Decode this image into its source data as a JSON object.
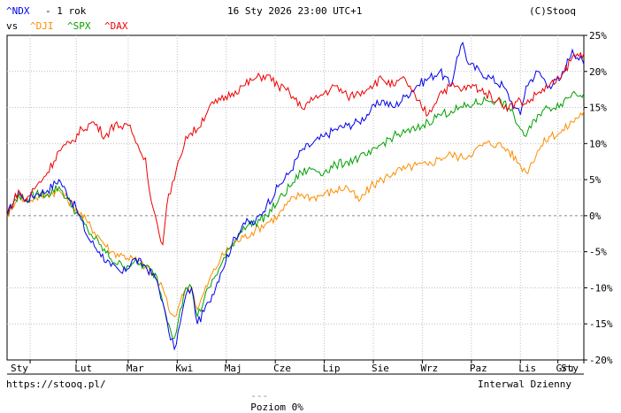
{
  "header": {
    "main_symbol": "^NDX",
    "period": "- 1 rok",
    "datetime": "16 Sty 2026 23:00 UTC+1",
    "copyright": "(C)Stooq",
    "vs_label": "vs"
  },
  "footer": {
    "url": "https://stooq.pl/",
    "zero_level_label": "Poziom 0%",
    "interval_label": "Interwal Dzienny"
  },
  "colors": {
    "NDX": "#0000ee",
    "DJI": "#ff8c00",
    "SPX": "#00a000",
    "DAX": "#ee0000",
    "grid": "#bfbfbf",
    "zero_line": "#888888",
    "frame": "#000000"
  },
  "chart_data": {
    "type": "line",
    "title": "^NDX - 1 rok",
    "y_unit": "%",
    "ylim": [
      -20,
      25
    ],
    "yticks": [
      25,
      20,
      15,
      10,
      5,
      0,
      -5,
      -10,
      -15,
      -20
    ],
    "ytick_labels": [
      "25%",
      "20%",
      "15%",
      "10%",
      "5%",
      "0%",
      "-5%",
      "-10%",
      "-15%",
      "-20%"
    ],
    "xlim": [
      0,
      100
    ],
    "x_ticks": [
      {
        "label": "Sty",
        "x": 4
      },
      {
        "label": "Lut",
        "x": 12
      },
      {
        "label": "Mar",
        "x": 21
      },
      {
        "label": "Kwi",
        "x": 29.5
      },
      {
        "label": "Maj",
        "x": 38
      },
      {
        "label": "Cze",
        "x": 46.5
      },
      {
        "label": "Lip",
        "x": 55
      },
      {
        "label": "Sie",
        "x": 63.5
      },
      {
        "label": "Wrz",
        "x": 72
      },
      {
        "label": "Paz",
        "x": 80.5
      },
      {
        "label": "Lis",
        "x": 89
      },
      {
        "label": "Gru",
        "x": 95.5
      },
      {
        "label": "Sty",
        "x": 100
      }
    ],
    "x_unit_note": "percent of the one-year period",
    "grid": true,
    "zero_line": true,
    "legend": "top-left",
    "series": [
      {
        "name": "^NDX",
        "color": "#0000ee",
        "x": [
          0,
          2,
          3,
          5,
          7,
          9,
          12,
          14,
          16,
          18,
          20,
          22,
          24,
          26,
          27,
          28,
          29,
          30,
          31,
          32,
          33,
          35,
          37,
          39,
          41,
          43,
          45,
          47,
          49,
          51,
          53,
          55,
          57,
          59,
          61,
          63,
          65,
          67,
          69,
          71,
          73,
          75,
          77,
          78,
          79,
          80,
          82,
          84,
          86,
          88,
          89,
          90,
          92,
          94,
          96,
          98,
          100
        ],
        "y": [
          0,
          3.5,
          2,
          3,
          3.5,
          5,
          1,
          -3,
          -5,
          -7,
          -8,
          -6,
          -7,
          -9,
          -12,
          -16,
          -18.5,
          -15,
          -11,
          -10,
          -15,
          -12,
          -8,
          -4,
          -1,
          -1,
          1.5,
          4,
          6,
          9,
          10,
          11,
          12,
          12.5,
          13,
          14.5,
          16,
          15,
          16.5,
          18,
          19,
          20,
          18,
          22,
          24,
          21,
          20,
          19,
          18,
          15,
          14,
          18,
          20,
          18,
          19,
          23,
          21
        ]
      },
      {
        "name": "^DJI",
        "color": "#ff8c00",
        "x": [
          0,
          2,
          3,
          5,
          7,
          9,
          12,
          14,
          16,
          18,
          20,
          22,
          24,
          26,
          27,
          28,
          29,
          30,
          31,
          32,
          33,
          35,
          37,
          39,
          41,
          43,
          45,
          47,
          49,
          51,
          53,
          55,
          57,
          59,
          61,
          63,
          65,
          67,
          69,
          71,
          73,
          75,
          77,
          79,
          81,
          83,
          85,
          87,
          89,
          90,
          92,
          94,
          96,
          98,
          100
        ],
        "y": [
          0,
          3,
          2,
          2.5,
          3,
          3.5,
          1,
          -1,
          -3,
          -5,
          -5.5,
          -6,
          -7,
          -9,
          -10,
          -13,
          -14,
          -12,
          -10,
          -10,
          -13,
          -9,
          -6,
          -4,
          -3,
          -2,
          -1,
          0,
          2,
          3,
          2.5,
          3,
          3.5,
          4,
          2,
          4,
          5,
          6,
          6.5,
          7,
          7,
          8,
          8.5,
          8,
          9,
          10,
          10,
          9,
          7,
          6,
          9,
          11,
          11.5,
          13,
          14.5
        ]
      },
      {
        "name": "^SPX",
        "color": "#00a000",
        "x": [
          0,
          2,
          3,
          5,
          7,
          9,
          12,
          14,
          16,
          18,
          20,
          22,
          24,
          26,
          27,
          28,
          29,
          30,
          31,
          32,
          33,
          35,
          37,
          39,
          41,
          43,
          45,
          47,
          49,
          51,
          53,
          55,
          57,
          59,
          61,
          63,
          65,
          67,
          69,
          71,
          73,
          75,
          77,
          79,
          81,
          83,
          85,
          87,
          89,
          90,
          92,
          94,
          96,
          98,
          100
        ],
        "y": [
          0,
          3,
          2,
          3,
          3,
          4,
          0.5,
          -2,
          -4,
          -6,
          -7,
          -6.5,
          -7,
          -8.5,
          -12,
          -15,
          -17,
          -13,
          -10,
          -10,
          -14,
          -10,
          -7,
          -4,
          -1.5,
          -1,
          0,
          2,
          4,
          6,
          6.5,
          6,
          7,
          7.5,
          8,
          8.5,
          10,
          11,
          11.5,
          12,
          13,
          14,
          14.5,
          15,
          15.5,
          16,
          16,
          15,
          12,
          11,
          14,
          15,
          15.5,
          17,
          17
        ]
      },
      {
        "name": "^DAX",
        "color": "#ee0000",
        "x": [
          0,
          2,
          3,
          5,
          7,
          9,
          11,
          13,
          15,
          17,
          19,
          20,
          21,
          22,
          23,
          24,
          25,
          26,
          27,
          28,
          29,
          30,
          31,
          33,
          35,
          37,
          39,
          41,
          43,
          45,
          47,
          49,
          51,
          53,
          55,
          57,
          59,
          61,
          63,
          65,
          67,
          69,
          71,
          73,
          75,
          77,
          79,
          81,
          83,
          85,
          87,
          89,
          90,
          92,
          94,
          96,
          98,
          100
        ],
        "y": [
          0,
          3.5,
          2,
          4,
          6,
          9,
          10,
          12,
          13,
          11,
          13,
          12,
          12.5,
          11,
          9,
          8,
          2,
          -1,
          -4,
          3,
          5,
          8,
          11,
          12,
          15,
          16,
          17,
          18,
          19,
          19.5,
          18,
          17,
          15,
          16,
          17,
          18,
          16.5,
          17,
          18,
          19,
          18,
          19,
          16,
          14,
          17,
          18,
          17.5,
          18,
          17,
          16,
          15,
          16,
          15.5,
          17,
          18,
          19,
          22,
          22.5
        ]
      }
    ]
  }
}
